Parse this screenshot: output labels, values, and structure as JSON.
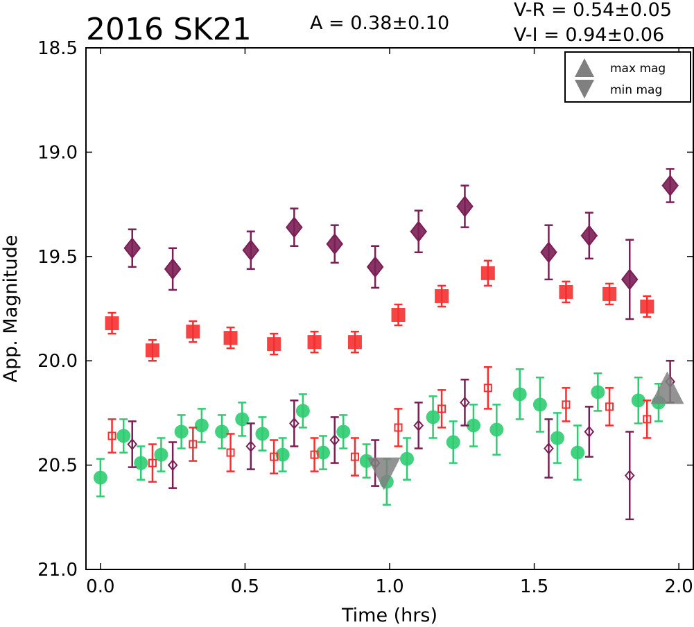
{
  "chart_data": {
    "type": "scatter",
    "title": "2016 SK21",
    "annotations": {
      "amplitude": "A  = 0.38±0.10",
      "v_r": "V-R = 0.54±0.05",
      "v_i": "V-I  = 0.94±0.06"
    },
    "xlabel": "Time (hrs)",
    "ylabel": "App. Magnitude",
    "xlim": [
      -0.05,
      2.05
    ],
    "ylim": [
      18.5,
      21.0
    ],
    "y_inverted": true,
    "x_ticks": [
      "0.0",
      "0.5",
      "1.0",
      "1.5",
      "2.0"
    ],
    "y_ticks": [
      "18.5",
      "19.0",
      "19.5",
      "20.0",
      "20.5",
      "21.0"
    ],
    "grid": false,
    "legend": {
      "placement": "top-right",
      "entries": [
        {
          "label": "max mag",
          "marker": "triangle-up",
          "color": "#808080"
        },
        {
          "label": "min mag",
          "marker": "triangle-down",
          "color": "#808080"
        }
      ]
    },
    "series": [
      {
        "marker": "diamond",
        "filled": true,
        "color": "#7b1e55",
        "points": [
          {
            "x": 0.11,
            "y": 19.46,
            "err": 0.09
          },
          {
            "x": 0.25,
            "y": 19.56,
            "err": 0.1
          },
          {
            "x": 0.52,
            "y": 19.47,
            "err": 0.09
          },
          {
            "x": 0.67,
            "y": 19.36,
            "err": 0.09
          },
          {
            "x": 0.81,
            "y": 19.44,
            "err": 0.09
          },
          {
            "x": 0.95,
            "y": 19.55,
            "err": 0.1
          },
          {
            "x": 1.1,
            "y": 19.38,
            "err": 0.1
          },
          {
            "x": 1.26,
            "y": 19.26,
            "err": 0.1
          },
          {
            "x": 1.55,
            "y": 19.48,
            "err": 0.13
          },
          {
            "x": 1.69,
            "y": 19.4,
            "err": 0.11
          },
          {
            "x": 1.83,
            "y": 19.61,
            "err": 0.19
          },
          {
            "x": 1.97,
            "y": 19.16,
            "err": 0.08
          }
        ]
      },
      {
        "marker": "square",
        "filled": true,
        "color": "#f52f2f",
        "points": [
          {
            "x": 0.04,
            "y": 19.82,
            "err": 0.05
          },
          {
            "x": 0.18,
            "y": 19.95,
            "err": 0.05
          },
          {
            "x": 0.32,
            "y": 19.86,
            "err": 0.05
          },
          {
            "x": 0.45,
            "y": 19.89,
            "err": 0.05
          },
          {
            "x": 0.6,
            "y": 19.92,
            "err": 0.05
          },
          {
            "x": 0.74,
            "y": 19.91,
            "err": 0.05
          },
          {
            "x": 0.88,
            "y": 19.91,
            "err": 0.05
          },
          {
            "x": 1.03,
            "y": 19.78,
            "err": 0.05
          },
          {
            "x": 1.18,
            "y": 19.69,
            "err": 0.05
          },
          {
            "x": 1.34,
            "y": 19.58,
            "err": 0.06
          },
          {
            "x": 1.61,
            "y": 19.67,
            "err": 0.05
          },
          {
            "x": 1.76,
            "y": 19.68,
            "err": 0.05
          },
          {
            "x": 1.89,
            "y": 19.74,
            "err": 0.05
          }
        ]
      },
      {
        "marker": "circle",
        "filled": true,
        "color": "#2ecc71",
        "points": [
          {
            "x": 0.0,
            "y": 20.56,
            "err": 0.09
          },
          {
            "x": 0.08,
            "y": 20.36,
            "err": 0.08
          },
          {
            "x": 0.14,
            "y": 20.49,
            "err": 0.08
          },
          {
            "x": 0.21,
            "y": 20.45,
            "err": 0.08
          },
          {
            "x": 0.28,
            "y": 20.34,
            "err": 0.08
          },
          {
            "x": 0.35,
            "y": 20.31,
            "err": 0.08
          },
          {
            "x": 0.42,
            "y": 20.34,
            "err": 0.08
          },
          {
            "x": 0.49,
            "y": 20.28,
            "err": 0.08
          },
          {
            "x": 0.56,
            "y": 20.35,
            "err": 0.08
          },
          {
            "x": 0.63,
            "y": 20.45,
            "err": 0.08
          },
          {
            "x": 0.7,
            "y": 20.24,
            "err": 0.08
          },
          {
            "x": 0.77,
            "y": 20.44,
            "err": 0.08
          },
          {
            "x": 0.84,
            "y": 20.34,
            "err": 0.08
          },
          {
            "x": 0.92,
            "y": 20.48,
            "err": 0.08
          },
          {
            "x": 0.99,
            "y": 20.58,
            "err": 0.11
          },
          {
            "x": 1.06,
            "y": 20.47,
            "err": 0.1
          },
          {
            "x": 1.15,
            "y": 20.27,
            "err": 0.1
          },
          {
            "x": 1.22,
            "y": 20.39,
            "err": 0.1
          },
          {
            "x": 1.29,
            "y": 20.31,
            "err": 0.1
          },
          {
            "x": 1.37,
            "y": 20.33,
            "err": 0.12
          },
          {
            "x": 1.45,
            "y": 20.16,
            "err": 0.12
          },
          {
            "x": 1.52,
            "y": 20.21,
            "err": 0.13
          },
          {
            "x": 1.58,
            "y": 20.37,
            "err": 0.12
          },
          {
            "x": 1.65,
            "y": 20.44,
            "err": 0.13
          },
          {
            "x": 1.72,
            "y": 20.15,
            "err": 0.09
          },
          {
            "x": 1.86,
            "y": 20.19,
            "err": 0.11
          },
          {
            "x": 1.93,
            "y": 20.2,
            "err": 0.09
          }
        ]
      },
      {
        "marker": "square",
        "filled": false,
        "color": "#f52f2f",
        "points": [
          {
            "x": 0.04,
            "y": 20.36,
            "err": 0.08
          },
          {
            "x": 0.18,
            "y": 20.49,
            "err": 0.09
          },
          {
            "x": 0.32,
            "y": 20.4,
            "err": 0.08
          },
          {
            "x": 0.45,
            "y": 20.44,
            "err": 0.09
          },
          {
            "x": 0.6,
            "y": 20.46,
            "err": 0.08
          },
          {
            "x": 0.74,
            "y": 20.45,
            "err": 0.08
          },
          {
            "x": 0.88,
            "y": 20.46,
            "err": 0.09
          },
          {
            "x": 1.03,
            "y": 20.32,
            "err": 0.09
          },
          {
            "x": 1.18,
            "y": 20.23,
            "err": 0.09
          },
          {
            "x": 1.34,
            "y": 20.13,
            "err": 0.1
          },
          {
            "x": 1.61,
            "y": 20.21,
            "err": 0.08
          },
          {
            "x": 1.76,
            "y": 20.22,
            "err": 0.09
          },
          {
            "x": 1.89,
            "y": 20.28,
            "err": 0.09
          }
        ]
      },
      {
        "marker": "diamond",
        "filled": false,
        "color": "#7b1e55",
        "points": [
          {
            "x": 0.11,
            "y": 20.4,
            "err": 0.11
          },
          {
            "x": 0.25,
            "y": 20.5,
            "err": 0.11
          },
          {
            "x": 0.52,
            "y": 20.41,
            "err": 0.11
          },
          {
            "x": 0.67,
            "y": 20.3,
            "err": 0.11
          },
          {
            "x": 0.81,
            "y": 20.38,
            "err": 0.11
          },
          {
            "x": 0.95,
            "y": 20.49,
            "err": 0.11
          },
          {
            "x": 1.1,
            "y": 20.31,
            "err": 0.11
          },
          {
            "x": 1.26,
            "y": 20.2,
            "err": 0.11
          },
          {
            "x": 1.55,
            "y": 20.42,
            "err": 0.14
          },
          {
            "x": 1.69,
            "y": 20.34,
            "err": 0.12
          },
          {
            "x": 1.83,
            "y": 20.55,
            "err": 0.21
          },
          {
            "x": 1.97,
            "y": 20.1,
            "err": 0.1
          }
        ]
      }
    ],
    "extrema": [
      {
        "label": "max mag",
        "marker": "triangle-up",
        "x": 1.96,
        "y": 20.15,
        "color": "#808080"
      },
      {
        "label": "min mag",
        "marker": "triangle-down",
        "x": 0.98,
        "y": 20.52,
        "color": "#808080"
      }
    ]
  }
}
